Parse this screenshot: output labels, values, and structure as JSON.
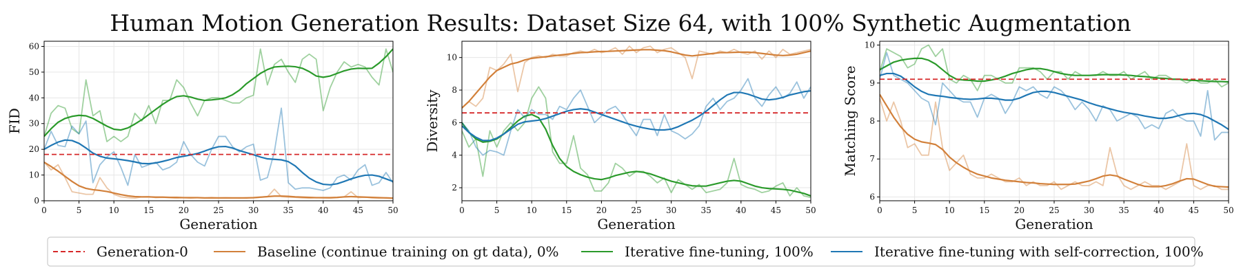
{
  "title": "Human Motion Generation Results: Dataset Size 64, with 100% Synthetic Augmentation",
  "colors": {
    "generation0": "#d62728",
    "baseline": "#d2803a",
    "iterative": "#2a9a2a",
    "selfcorrection": "#1f77b4"
  },
  "legend": {
    "generation0": "Generation-0",
    "baseline": "Baseline (continue training on gt data), 0%",
    "iterative": "Iterative fine-tuning, 100%",
    "selfcorrection": "Iterative fine-tuning with self-correction, 100%"
  },
  "chart_data": [
    {
      "type": "line",
      "xlabel": "Generation",
      "ylabel": "FID",
      "xlim": [
        0,
        50
      ],
      "ylim": [
        0,
        62
      ],
      "xticks": [
        0,
        5,
        10,
        15,
        20,
        25,
        30,
        35,
        40,
        45,
        50
      ],
      "yticks": [
        0,
        10,
        20,
        30,
        40,
        50,
        60
      ],
      "grid": true,
      "hline": 18,
      "series": [
        {
          "key": "baseline",
          "raw": true,
          "values": [
            15,
            12,
            14,
            9,
            3.5,
            3,
            2.5,
            2.5,
            9,
            5,
            2.5,
            1.5,
            1.2,
            1,
            1.5,
            1.6,
            1.2,
            1.3,
            1.2,
            1,
            1.2,
            1,
            1.2,
            1.1,
            1.3,
            1.1,
            1.2,
            1.1,
            1,
            1.2,
            1.1,
            1.3,
            1.5,
            4.5,
            1.6,
            1.4,
            1.3,
            1.1,
            1,
            1.2,
            1.1,
            1,
            1.2,
            1.5,
            3.5,
            1.2,
            1.4,
            1.1,
            1,
            1.2,
            1.1
          ]
        },
        {
          "key": "baseline",
          "raw": false,
          "values": [
            15,
            13.3,
            11.5,
            9.5,
            7.5,
            5.8,
            4.8,
            4.3,
            4,
            3.6,
            3,
            2.4,
            1.9,
            1.6,
            1.5,
            1.5,
            1.4,
            1.4,
            1.3,
            1.3,
            1.2,
            1.2,
            1.2,
            1.1,
            1.1,
            1.1,
            1.1,
            1.1,
            1.1,
            1.1,
            1.2,
            1.4,
            1.6,
            1.8,
            1.8,
            1.7,
            1.5,
            1.4,
            1.3,
            1.2,
            1.2,
            1.2,
            1.3,
            1.5,
            1.6,
            1.5,
            1.4,
            1.3,
            1.2,
            1.1,
            1
          ]
        },
        {
          "key": "iterative",
          "raw": true,
          "values": [
            25,
            34,
            37,
            36,
            28,
            26,
            47,
            33,
            35,
            23,
            25,
            23,
            25,
            34,
            31,
            37,
            30,
            39,
            39,
            47,
            44,
            38,
            33,
            39,
            40,
            40,
            39,
            38,
            38,
            40,
            41,
            59,
            45,
            53,
            55,
            50,
            46,
            55,
            57,
            55,
            35,
            44,
            50,
            54,
            52,
            53,
            52,
            48,
            45,
            59,
            50
          ]
        },
        {
          "key": "iterative",
          "raw": false,
          "values": [
            25,
            28,
            30.5,
            32,
            32.8,
            33.2,
            33,
            32,
            30.5,
            29,
            27.8,
            27.5,
            28.3,
            29.8,
            31.5,
            33.5,
            35.5,
            37.5,
            39.2,
            40.5,
            40.8,
            40.3,
            39.5,
            39,
            39.2,
            39.5,
            40,
            41.2,
            43,
            45.5,
            47.5,
            49.5,
            51,
            52,
            52.2,
            52.3,
            52.1,
            51.5,
            50.2,
            48.5,
            48,
            48.5,
            49.5,
            50.5,
            51.2,
            51.5,
            51.4,
            51.5,
            53.5,
            56,
            59
          ]
        },
        {
          "key": "selfcorrection",
          "raw": true,
          "values": [
            20,
            27,
            21.5,
            21,
            29,
            26,
            31,
            7,
            14,
            17,
            19,
            13,
            6,
            18,
            13,
            14,
            15,
            12,
            13,
            15,
            23,
            18,
            15,
            13.5,
            20,
            25,
            25,
            21,
            19,
            21,
            22,
            8,
            9,
            19,
            36,
            7,
            4.5,
            5,
            5,
            4.5,
            4,
            5,
            9,
            10,
            8,
            12,
            14,
            6,
            7,
            11,
            7
          ]
        },
        {
          "key": "selfcorrection",
          "raw": false,
          "values": [
            20,
            21.5,
            22.8,
            23.6,
            23.4,
            22.3,
            20.5,
            18.5,
            17.3,
            16.6,
            16.3,
            16,
            15.6,
            15.1,
            14.5,
            14.4,
            14.7,
            15.3,
            16,
            16.8,
            17.3,
            17.8,
            18.4,
            19.3,
            20.3,
            21,
            21.1,
            20.5,
            19.5,
            18.7,
            17.9,
            17,
            16.3,
            16.1,
            15.9,
            15.2,
            13.5,
            11,
            8.8,
            7.3,
            6.4,
            6.2,
            6.6,
            7.5,
            8.5,
            9.3,
            9.9,
            10,
            9.5,
            8.5,
            7.5
          ]
        }
      ]
    },
    {
      "type": "line",
      "xlabel": "Generation",
      "ylabel": "Diversity",
      "xlim": [
        0,
        50
      ],
      "ylim": [
        1.2,
        11
      ],
      "xticks": [
        0,
        5,
        10,
        15,
        20,
        25,
        30,
        35,
        40,
        45,
        50
      ],
      "yticks": [
        2,
        4,
        6,
        8,
        10
      ],
      "grid": true,
      "hline": 6.6,
      "series": [
        {
          "key": "baseline",
          "raw": true,
          "values": [
            6.9,
            7.3,
            7,
            7.5,
            9.4,
            9.2,
            9.6,
            10.2,
            7.9,
            9.7,
            10,
            10.1,
            10,
            10.2,
            10.1,
            10.1,
            10.3,
            10.4,
            10.3,
            10.5,
            10.3,
            10.4,
            10.6,
            10.2,
            10.7,
            10.3,
            10.6,
            10.7,
            10.3,
            10.5,
            10.6,
            10.3,
            10,
            8.7,
            10.4,
            10.3,
            10.2,
            10.4,
            10.3,
            10.5,
            10.3,
            10.2,
            10.4,
            9.9,
            10.4,
            10,
            10.5,
            10.2,
            10.3,
            10.4,
            10.5
          ]
        },
        {
          "key": "baseline",
          "raw": false,
          "values": [
            6.9,
            7.3,
            7.8,
            8.3,
            8.8,
            9.2,
            9.4,
            9.6,
            9.7,
            9.85,
            9.95,
            10,
            10.05,
            10.1,
            10.15,
            10.2,
            10.25,
            10.3,
            10.32,
            10.35,
            10.37,
            10.38,
            10.4,
            10.42,
            10.44,
            10.46,
            10.48,
            10.48,
            10.45,
            10.42,
            10.35,
            10.25,
            10.15,
            10.1,
            10.15,
            10.2,
            10.25,
            10.3,
            10.3,
            10.32,
            10.33,
            10.33,
            10.3,
            10.25,
            10.2,
            10.15,
            10.12,
            10.15,
            10.2,
            10.3,
            10.4
          ]
        },
        {
          "key": "iterative",
          "raw": true,
          "values": [
            5.5,
            4.5,
            5,
            2.7,
            5.5,
            4.5,
            5.5,
            6,
            5.5,
            6,
            7.5,
            8.2,
            7.5,
            4.2,
            3.5,
            3.5,
            5.2,
            3.2,
            2.8,
            1.8,
            1.8,
            2.3,
            3.5,
            3.2,
            2.7,
            3,
            3,
            2.7,
            2.3,
            2.6,
            1.7,
            2.5,
            2.2,
            1.9,
            2.2,
            1.7,
            1.8,
            1.9,
            2.3,
            3.8,
            2.2,
            2,
            1.9,
            1.7,
            1.8,
            2.1,
            2.3,
            1.5,
            2,
            1.5,
            1.4
          ]
        },
        {
          "key": "iterative",
          "raw": false,
          "values": [
            6,
            5.4,
            5,
            4.8,
            4.85,
            5,
            5.3,
            5.7,
            6.1,
            6.4,
            6.5,
            6.3,
            5.6,
            4.6,
            3.8,
            3.3,
            3,
            2.8,
            2.65,
            2.55,
            2.5,
            2.6,
            2.75,
            2.85,
            2.95,
            3,
            2.95,
            2.85,
            2.7,
            2.55,
            2.4,
            2.3,
            2.2,
            2.12,
            2.1,
            2.1,
            2.2,
            2.3,
            2.4,
            2.45,
            2.4,
            2.25,
            2.1,
            2,
            1.95,
            1.93,
            1.9,
            1.85,
            1.75,
            1.65,
            1.5
          ]
        },
        {
          "key": "selfcorrection",
          "raw": true,
          "values": [
            6,
            5.5,
            4.5,
            4,
            4.3,
            4.2,
            4,
            5.5,
            6.8,
            6.3,
            6.8,
            6.5,
            6.5,
            6.2,
            7,
            6.8,
            7.5,
            8,
            7,
            6,
            6.4,
            6.8,
            7,
            6.5,
            5.8,
            5.2,
            6.2,
            6.2,
            5.2,
            6.5,
            5.5,
            5.3,
            5,
            5.3,
            5.8,
            7,
            7.5,
            6.8,
            7.3,
            7.5,
            8,
            8.7,
            7.5,
            7,
            7.7,
            8.2,
            7.5,
            7.8,
            8.5,
            7.5,
            8.2
          ]
        },
        {
          "key": "selfcorrection",
          "raw": false,
          "values": [
            5.8,
            5.4,
            5.1,
            4.9,
            4.9,
            5.05,
            5.3,
            5.6,
            5.9,
            6.05,
            6.1,
            6.15,
            6.25,
            6.4,
            6.55,
            6.7,
            6.8,
            6.85,
            6.8,
            6.65,
            6.5,
            6.35,
            6.2,
            6.05,
            5.9,
            5.78,
            5.68,
            5.6,
            5.55,
            5.55,
            5.6,
            5.75,
            5.95,
            6.15,
            6.4,
            6.7,
            7.05,
            7.4,
            7.7,
            7.85,
            7.85,
            7.75,
            7.6,
            7.45,
            7.4,
            7.45,
            7.55,
            7.7,
            7.8,
            7.9,
            7.95
          ]
        }
      ]
    },
    {
      "type": "line",
      "xlabel": "Generation",
      "ylabel": "Matching Score",
      "xlim": [
        0,
        50
      ],
      "ylim": [
        5.9,
        10.1
      ],
      "xticks": [
        0,
        5,
        10,
        15,
        20,
        25,
        30,
        35,
        40,
        45,
        50
      ],
      "yticks": [
        6,
        7,
        8,
        9,
        10
      ],
      "grid": true,
      "hline": 9.1,
      "series": [
        {
          "key": "baseline",
          "raw": true,
          "values": [
            8.6,
            8,
            8.5,
            8,
            7.3,
            7.4,
            7.1,
            7.1,
            8.5,
            7.3,
            6.7,
            6.9,
            7.1,
            6.6,
            6.5,
            6.5,
            6.6,
            6.5,
            6.4,
            6.4,
            6.5,
            6.3,
            6.4,
            6.3,
            6.3,
            6.4,
            6.2,
            6.3,
            6.4,
            6.3,
            6.3,
            6.4,
            6.3,
            7.3,
            6.6,
            6.3,
            6.2,
            6.3,
            6.4,
            6.3,
            6.3,
            6.2,
            6.3,
            6.4,
            7.4,
            6.3,
            6.2,
            6.3,
            6.3,
            6.2,
            6.2
          ]
        },
        {
          "key": "baseline",
          "raw": false,
          "values": [
            8.7,
            8.4,
            8.1,
            7.85,
            7.65,
            7.52,
            7.45,
            7.42,
            7.38,
            7.25,
            7.05,
            6.9,
            6.78,
            6.68,
            6.6,
            6.55,
            6.5,
            6.47,
            6.44,
            6.42,
            6.4,
            6.38,
            6.37,
            6.35,
            6.34,
            6.33,
            6.33,
            6.33,
            6.34,
            6.38,
            6.42,
            6.48,
            6.55,
            6.58,
            6.55,
            6.47,
            6.4,
            6.33,
            6.28,
            6.27,
            6.27,
            6.3,
            6.35,
            6.42,
            6.48,
            6.47,
            6.4,
            6.33,
            6.28,
            6.27,
            6.26
          ]
        },
        {
          "key": "iterative",
          "raw": true,
          "values": [
            9.3,
            9.9,
            9.8,
            9.7,
            9.4,
            9.5,
            9.9,
            10,
            9.7,
            9.9,
            9.1,
            9,
            9.2,
            9.1,
            8.8,
            9.2,
            9.2,
            9.1,
            9,
            9,
            9.4,
            9.4,
            9.4,
            9.3,
            9.1,
            9.3,
            9.3,
            9.1,
            9.3,
            9.2,
            9.2,
            9.2,
            9.3,
            9.2,
            9.2,
            9.3,
            9.1,
            9.2,
            9.3,
            9.1,
            9.2,
            9.2,
            9.1,
            9.1,
            9,
            9.1,
            9,
            9,
            9.1,
            8.9,
            9
          ]
        },
        {
          "key": "iterative",
          "raw": false,
          "values": [
            9.35,
            9.45,
            9.55,
            9.6,
            9.63,
            9.65,
            9.65,
            9.6,
            9.5,
            9.35,
            9.2,
            9.1,
            9.08,
            9.07,
            9.05,
            9.05,
            9.08,
            9.12,
            9.18,
            9.25,
            9.3,
            9.35,
            9.38,
            9.38,
            9.35,
            9.3,
            9.25,
            9.22,
            9.2,
            9.2,
            9.2,
            9.21,
            9.22,
            9.22,
            9.22,
            9.21,
            9.2,
            9.18,
            9.17,
            9.15,
            9.13,
            9.12,
            9.1,
            9.1,
            9.08,
            9.07,
            9.06,
            9.05,
            9.04,
            9.04,
            9.03
          ]
        },
        {
          "key": "selfcorrection",
          "raw": true,
          "values": [
            9.1,
            9.8,
            9.2,
            9.1,
            9,
            8.8,
            8.6,
            8.5,
            7.9,
            9,
            8.8,
            8.6,
            8.5,
            8.5,
            8.1,
            8.6,
            8.7,
            8.6,
            8.2,
            8.5,
            8.9,
            8.8,
            8.9,
            8.7,
            8.6,
            8.9,
            8.8,
            8.6,
            8.3,
            8.5,
            8.3,
            8,
            8.4,
            8.3,
            8,
            8.1,
            8.2,
            8.1,
            7.8,
            7.9,
            7.8,
            8.2,
            8.3,
            8.1,
            8,
            8,
            7.6,
            8.8,
            7.5,
            7.7,
            7.7
          ]
        },
        {
          "key": "selfcorrection",
          "raw": false,
          "values": [
            9.2,
            9.25,
            9.25,
            9.18,
            9.05,
            8.9,
            8.78,
            8.7,
            8.67,
            8.65,
            8.62,
            8.6,
            8.58,
            8.57,
            8.58,
            8.6,
            8.6,
            8.58,
            8.55,
            8.55,
            8.6,
            8.68,
            8.75,
            8.78,
            8.78,
            8.75,
            8.7,
            8.65,
            8.6,
            8.55,
            8.48,
            8.42,
            8.37,
            8.32,
            8.27,
            8.23,
            8.2,
            8.17,
            8.13,
            8.1,
            8.07,
            8.07,
            8.1,
            8.15,
            8.19,
            8.2,
            8.17,
            8.1,
            8,
            7.9,
            7.78
          ]
        }
      ]
    }
  ]
}
